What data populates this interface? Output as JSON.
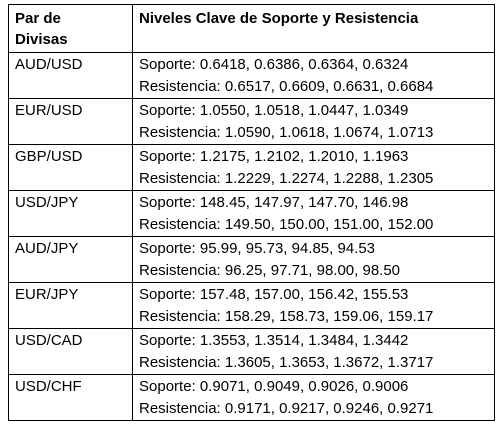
{
  "table": {
    "header": {
      "pair_line1": "Par de",
      "pair_line2": "Divisas",
      "levels": "Niveles Clave de Soporte y Resistencia"
    },
    "rows": [
      {
        "pair": "AUD/USD",
        "support": "Soporte: 0.6418, 0.6386, 0.6364, 0.6324",
        "resistance": "Resistencia: 0.6517, 0.6609, 0.6631, 0.6684"
      },
      {
        "pair": "EUR/USD",
        "support": "Soporte: 1.0550, 1.0518, 1.0447, 1.0349",
        "resistance": "Resistencia: 1.0590, 1.0618, 1.0674, 1.0713"
      },
      {
        "pair": "GBP/USD",
        "support": "Soporte: 1.2175, 1.2102, 1.2010, 1.1963",
        "resistance": "Resistencia: 1.2229, 1.2274, 1.2288, 1.2305"
      },
      {
        "pair": "USD/JPY",
        "support": "Soporte: 148.45, 147.97, 147.70, 146.98",
        "resistance": "Resistencia: 149.50, 150.00, 151.00, 152.00"
      },
      {
        "pair": "AUD/JPY",
        "support": "Soporte: 95.99, 95.73, 94.85, 94.53",
        "resistance": "Resistencia: 96.25, 97.71, 98.00, 98.50"
      },
      {
        "pair": "EUR/JPY",
        "support": "Soporte: 157.48, 157.00, 156.42, 155.53",
        "resistance": "Resistencia: 158.29, 158.73, 159.06, 159.17"
      },
      {
        "pair": "USD/CAD",
        "support": "Soporte: 1.3553, 1.3514, 1.3484, 1.3442",
        "resistance": "Resistencia: 1.3605, 1.3653, 1.3672, 1.3717"
      },
      {
        "pair": "USD/CHF",
        "support": "Soporte: 0.9071, 0.9049, 0.9026, 0.9006",
        "resistance": "Resistencia: 0.9171, 0.9217, 0.9246, 0.9271"
      }
    ]
  }
}
